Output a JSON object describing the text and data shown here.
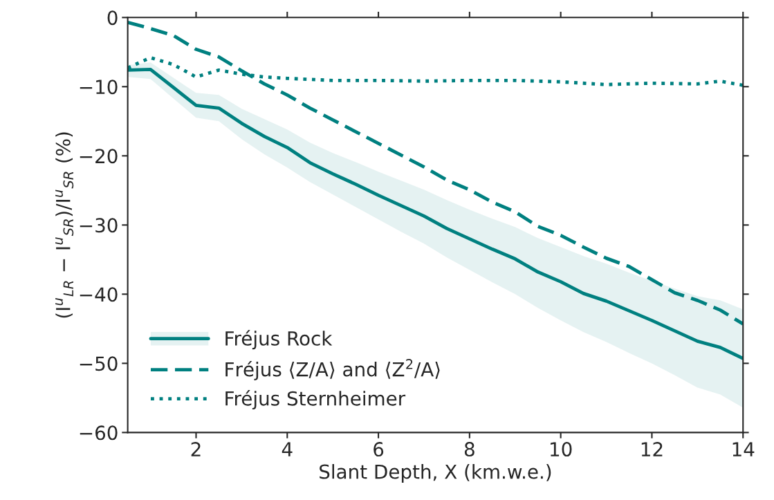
{
  "chart_data": {
    "type": "line",
    "xlabel": "Slant Depth, X (km.w.e.)",
    "ylabel": "(I$^{u}$$_{LR}$ − I$^{u}$$_{SR}$)/I$^{u}$$_{SR}$ (%)",
    "xlim": [
      0.5,
      14
    ],
    "ylim": [
      -60,
      0
    ],
    "xticks": [
      2,
      4,
      6,
      8,
      10,
      12,
      14
    ],
    "yticks": [
      -60,
      -50,
      -40,
      -30,
      -20,
      -10,
      0
    ],
    "grid": false,
    "legend": "bottom left",
    "series": [
      {
        "name": "Fréjus Rock",
        "color": "#008080",
        "line_style": "solid",
        "x": [
          0.5,
          1,
          2,
          2.5,
          3,
          3.5,
          4,
          4.5,
          5,
          5.5,
          6,
          6.5,
          7,
          7.5,
          8,
          8.5,
          9,
          9.5,
          10,
          10.5,
          11,
          11.5,
          12,
          12.5,
          13,
          13.5,
          14
        ],
        "values": [
          -7.6,
          -7.5,
          -12.7,
          -13.1,
          -15.3,
          -17.2,
          -18.8,
          -21,
          -22.6,
          -24.1,
          -25.7,
          -27.2,
          -28.7,
          -30.5,
          -32,
          -33.5,
          -34.9,
          -36.8,
          -38.2,
          -39.9,
          -41,
          -42.4,
          -43.8,
          -45.3,
          -46.8,
          -47.7,
          -49.3
        ],
        "lower": [
          -8.6,
          -8.9,
          -14.5,
          -15,
          -17.6,
          -19.8,
          -21.7,
          -23.8,
          -25.6,
          -27.4,
          -29.2,
          -31,
          -32.7,
          -34.7,
          -36.5,
          -38.3,
          -40,
          -42,
          -43.8,
          -45.5,
          -46.9,
          -48.5,
          -50,
          -51.7,
          -53.5,
          -54.5,
          -56.4
        ],
        "upper": [
          -6.9,
          -6.5,
          -10.9,
          -11.2,
          -13.2,
          -14.7,
          -16.2,
          -18.1,
          -19.6,
          -20.9,
          -22.3,
          -23.6,
          -24.9,
          -26.4,
          -27.8,
          -29.1,
          -30.3,
          -31.9,
          -33.2,
          -34.5,
          -35.6,
          -36.9,
          -38.1,
          -39.2,
          -40.3,
          -40.9,
          -42.2
        ]
      },
      {
        "name": "Fréjus ⟨Z/A⟩ and ⟨Z$^{2}$/A⟩",
        "color": "#008080",
        "line_style": "dashed",
        "x": [
          0.5,
          1,
          1.5,
          2,
          2.5,
          3,
          3.5,
          4,
          4.5,
          5,
          5.5,
          6,
          6.5,
          7,
          7.5,
          8,
          8.5,
          9,
          9.5,
          10,
          10.5,
          11,
          11.5,
          12,
          12.5,
          13,
          13.5,
          14
        ],
        "values": [
          -0.7,
          -1.6,
          -2.6,
          -4.6,
          -5.7,
          -7.7,
          -9.6,
          -11.2,
          -13.1,
          -14.8,
          -16.5,
          -18.2,
          -19.9,
          -21.6,
          -23.5,
          -24.9,
          -26.7,
          -28.1,
          -30.2,
          -31.5,
          -33.2,
          -34.8,
          -36,
          -37.9,
          -39.8,
          -40.9,
          -42.3,
          -44.3
        ]
      },
      {
        "name": "Fréjus Sternheimer",
        "color": "#008080",
        "line_style": "dotted",
        "x": [
          0.5,
          1,
          1.5,
          2,
          2.5,
          3,
          3.5,
          4,
          5,
          6,
          7,
          8,
          9,
          10,
          11,
          12,
          13,
          13.5,
          14
        ],
        "values": [
          -7.3,
          -5.8,
          -6.8,
          -8.6,
          -7.6,
          -8.2,
          -8.6,
          -8.8,
          -9.1,
          -9.1,
          -9.2,
          -9.1,
          -9.1,
          -9.3,
          -9.7,
          -9.5,
          -9.6,
          -9.2,
          -9.8
        ]
      }
    ]
  }
}
